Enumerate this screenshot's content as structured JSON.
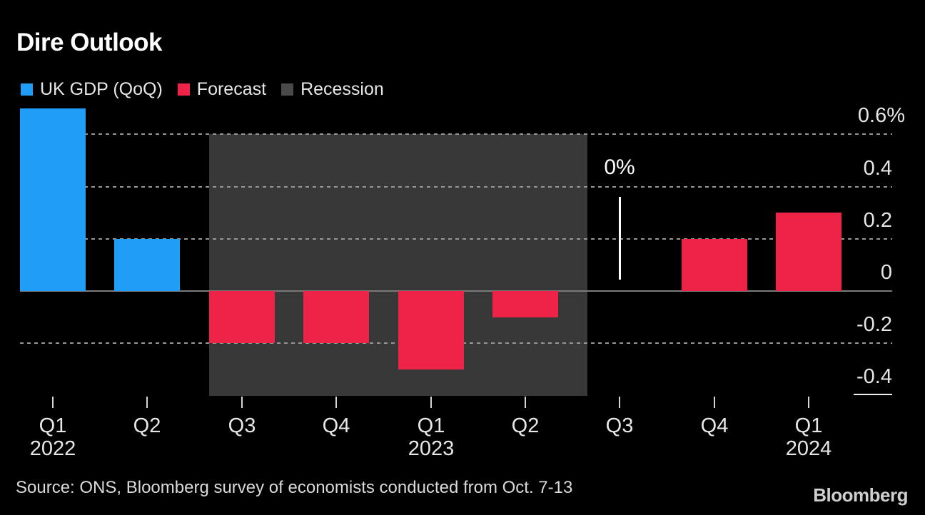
{
  "title": "Dire Outlook",
  "legend": [
    {
      "label": "UK GDP (QoQ)",
      "color": "#209ef7"
    },
    {
      "label": "Forecast",
      "color": "#ee2347"
    },
    {
      "label": "Recession",
      "color": "#4a4a4a"
    }
  ],
  "chart_data": {
    "type": "bar",
    "title": "Dire Outlook",
    "categories": [
      "Q1 2022",
      "Q2 2022",
      "Q3 2022",
      "Q4 2022",
      "Q1 2023",
      "Q2 2023",
      "Q3 2023",
      "Q4 2023",
      "Q1 2024"
    ],
    "x_tick_labels": [
      "Q1",
      "Q2",
      "Q3",
      "Q4",
      "Q1",
      "Q2",
      "Q3",
      "Q4",
      "Q1"
    ],
    "x_year_labels": [
      {
        "index": 0,
        "year": "2022"
      },
      {
        "index": 4,
        "year": "2023"
      },
      {
        "index": 8,
        "year": "2024"
      }
    ],
    "series": [
      {
        "name": "UK GDP (QoQ)",
        "color": "#209ef7",
        "values": [
          0.7,
          0.2,
          null,
          null,
          null,
          null,
          null,
          null,
          null
        ]
      },
      {
        "name": "Forecast",
        "color": "#ee2347",
        "values": [
          null,
          null,
          -0.2,
          -0.2,
          -0.3,
          -0.1,
          0,
          0.2,
          0.3
        ]
      }
    ],
    "recession_span": {
      "from": "Q3 2022",
      "to": "Q2 2023"
    },
    "y_ticks": [
      {
        "value": 0.6,
        "label": "0.6%"
      },
      {
        "value": 0.4,
        "label": "0.4"
      },
      {
        "value": 0.2,
        "label": "0.2"
      },
      {
        "value": 0,
        "label": "0"
      },
      {
        "value": -0.2,
        "label": "-0.2"
      },
      {
        "value": -0.4,
        "label": "-0.4"
      }
    ],
    "ylim": [
      -0.45,
      0.72
    ],
    "unit": "%",
    "grid": "horizontal-dotted",
    "legend_position": "top-left",
    "annotation": {
      "text": "0%",
      "category": "Q3 2023",
      "value": 0
    }
  },
  "source": "Source: ONS, Bloomberg survey of economists conducted from Oct. 7-13",
  "logo": "Bloomberg",
  "colors": {
    "background": "#000000",
    "actual": "#209ef7",
    "forecast": "#ee2347",
    "recession_band": "#383838",
    "gridline": "#969696",
    "zero_line": "#7a7a7a",
    "axis_text": "#e6e6e6",
    "annotation": "#ffffff"
  }
}
